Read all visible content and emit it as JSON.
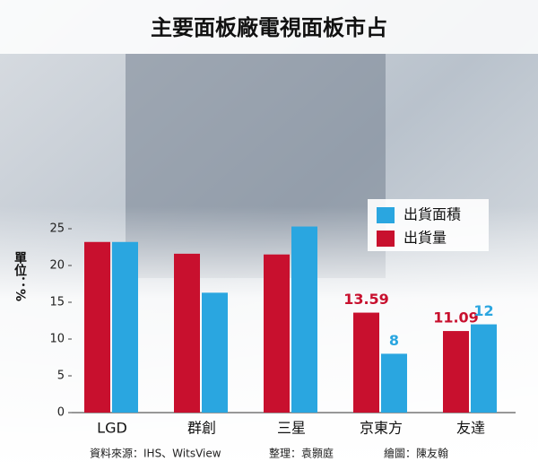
{
  "chart_data": {
    "type": "bar",
    "title": "主要面板廠電視面板市占",
    "y_label": "單位：%",
    "categories": [
      "LGD",
      "群創",
      "三星",
      "京東方",
      "友達"
    ],
    "series": [
      {
        "name": "出貨面積",
        "color": "#2aa6e0",
        "values": [
          23.2,
          16.3,
          25.3,
          8,
          12
        ],
        "value_labels": [
          null,
          null,
          null,
          "8",
          "12"
        ]
      },
      {
        "name": "出貨量",
        "color": "#c8102e",
        "values": [
          23.2,
          21.6,
          21.5,
          13.59,
          11.09
        ],
        "value_labels": [
          null,
          null,
          null,
          "13.59",
          "11.09"
        ]
      }
    ],
    "ylim": [
      0,
      25
    ],
    "yticks": [
      0,
      5,
      10,
      15,
      20,
      25
    ],
    "sources": [
      "資料來源：IHS、WitsView",
      "整理：袁顥庭",
      "繪圖：陳友翰"
    ]
  }
}
